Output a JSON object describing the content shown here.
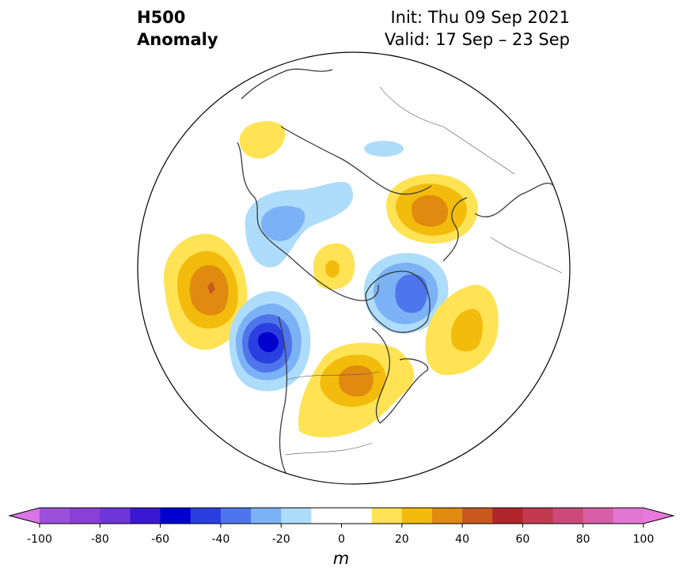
{
  "header": {
    "title_line1": "H500",
    "title_line2": "Anomaly",
    "init_text": "Init: Thu 09 Sep 2021",
    "valid_text": "Valid: 17 Sep – 23 Sep"
  },
  "map": {
    "projection": "north-polar-stereographic",
    "field": "500 hPa geopotential height anomaly",
    "anomalies": [
      {
        "name": "alaska-ridge",
        "sign": "positive",
        "peak_m": 25
      },
      {
        "name": "bering-ridge",
        "sign": "positive",
        "peak_m": 15
      },
      {
        "name": "siberia-trough",
        "sign": "negative",
        "peak_m": -15
      },
      {
        "name": "east-siberia-trough",
        "sign": "negative",
        "peak_m": -25
      },
      {
        "name": "north-pacific-ridge",
        "sign": "positive",
        "peak_m": 50
      },
      {
        "name": "gulf-of-alaska-trough",
        "sign": "negative",
        "peak_m": -55
      },
      {
        "name": "arctic-ridge",
        "sign": "positive",
        "peak_m": 25
      },
      {
        "name": "scandinavia-trough",
        "sign": "negative",
        "peak_m": -35
      },
      {
        "name": "north-atlantic-ridge",
        "sign": "positive",
        "peak_m": 25
      },
      {
        "name": "central-north-america-ridge",
        "sign": "positive",
        "peak_m": 40
      },
      {
        "name": "east-siberia-ridge",
        "sign": "positive",
        "peak_m": 40
      }
    ]
  },
  "colorbar": {
    "unit": "m",
    "tick_labels": [
      "-100",
      "-80",
      "-60",
      "-40",
      "-20",
      "0",
      "20",
      "40",
      "60",
      "80",
      "100"
    ],
    "bins": [
      {
        "from": -100,
        "to": -90,
        "color": "#9c4fd9"
      },
      {
        "from": -90,
        "to": -80,
        "color": "#8a3fd6"
      },
      {
        "from": -80,
        "to": -70,
        "color": "#6e35d8"
      },
      {
        "from": -70,
        "to": -60,
        "color": "#3a17d0"
      },
      {
        "from": -60,
        "to": -50,
        "color": "#0000cf"
      },
      {
        "from": -50,
        "to": -40,
        "color": "#2b3fe0"
      },
      {
        "from": -40,
        "to": -30,
        "color": "#4f75ec"
      },
      {
        "from": -30,
        "to": -20,
        "color": "#7bb2f5"
      },
      {
        "from": -20,
        "to": -10,
        "color": "#aedcfb"
      },
      {
        "from": -10,
        "to": 10,
        "color": "#ffffff"
      },
      {
        "from": 10,
        "to": 20,
        "color": "#ffe354"
      },
      {
        "from": 20,
        "to": 30,
        "color": "#f3bb0c"
      },
      {
        "from": 30,
        "to": 40,
        "color": "#e08a0f"
      },
      {
        "from": 40,
        "to": 50,
        "color": "#c8581d"
      },
      {
        "from": 50,
        "to": 60,
        "color": "#b0262a"
      },
      {
        "from": 60,
        "to": 70,
        "color": "#c13a4f"
      },
      {
        "from": 70,
        "to": 80,
        "color": "#cc4a79"
      },
      {
        "from": 80,
        "to": 90,
        "color": "#d75fa6"
      },
      {
        "from": 90,
        "to": 100,
        "color": "#e276d3"
      }
    ],
    "under_color": "#d975e6",
    "over_color": "#e979dc"
  }
}
